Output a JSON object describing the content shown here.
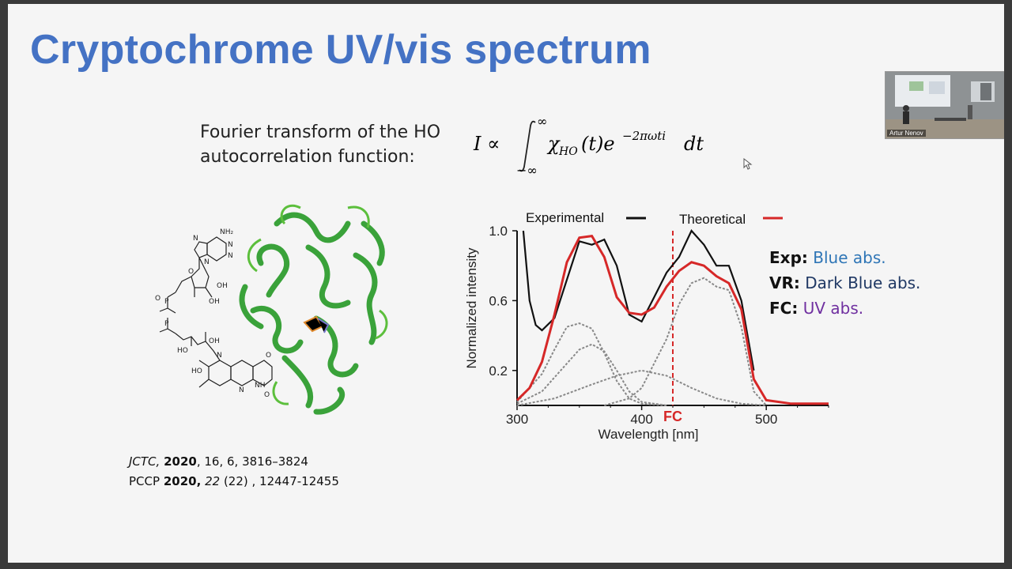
{
  "slide": {
    "title": "Cryptochrome UV/vis spectrum",
    "ft_line1": "Fourier transform of the HO",
    "ft_line2": "autocorrelation function:",
    "equation": {
      "lhs": "I ∝",
      "upper": "∞",
      "lower": "−∞",
      "chi": "χ",
      "chi_sub": "HO",
      "mid": "(t)e",
      "exp": "−2πωti",
      "tail": "dt"
    },
    "refs": {
      "r1_journal": "JCTC,",
      "r1_year": "2020",
      "r1_rest": ", 16, 6, 3816–3824",
      "r2_journal": "PCCP",
      "r2_year": "2020,",
      "r2_vol": "22",
      "r2_rest": "(22) , 12447-12455"
    },
    "legend_text": [
      {
        "key": "Exp:",
        "value": "Blue abs.",
        "color": "#2e75b6"
      },
      {
        "key": "VR:",
        "value": "Dark Blue abs.",
        "color": "#1f3864"
      },
      {
        "key": "FC:",
        "value": "UV abs.",
        "color": "#7030a0"
      }
    ],
    "molecule_labels": [
      "NH₂",
      "N",
      "N",
      "N",
      "N",
      "O",
      "OH",
      "OH",
      "P",
      "O",
      "P",
      "HO",
      "OH",
      "HO",
      "N",
      "N",
      "NH",
      "O",
      "O"
    ]
  },
  "camera": {
    "name": "Artur Nenov"
  },
  "colors": {
    "title": "#4472c4",
    "experimental": "#111111",
    "theoretical": "#d62828",
    "component": "#888888",
    "protein": "#3aa23a"
  },
  "chart_data": {
    "type": "line",
    "xlabel": "Wavelength [nm]",
    "ylabel": "Normalized intensity",
    "xlim": [
      300,
      550
    ],
    "ylim": [
      0,
      1.0
    ],
    "xticks": [
      300,
      400,
      500
    ],
    "yticks": [
      0.2,
      0.6,
      1.0
    ],
    "fc_marker": {
      "x": 425,
      "label": "FC"
    },
    "series": [
      {
        "name": "Experimental",
        "color": "#111111",
        "x": [
          305,
          310,
          315,
          320,
          330,
          340,
          350,
          360,
          370,
          380,
          390,
          400,
          410,
          420,
          430,
          440,
          450,
          460,
          470,
          480,
          490
        ],
        "y": [
          1.0,
          0.6,
          0.46,
          0.43,
          0.5,
          0.72,
          0.94,
          0.92,
          0.95,
          0.8,
          0.52,
          0.48,
          0.62,
          0.76,
          0.85,
          1.0,
          0.92,
          0.8,
          0.8,
          0.6,
          0.2
        ]
      },
      {
        "name": "Theoretical",
        "color": "#d62828",
        "x": [
          300,
          310,
          320,
          330,
          340,
          350,
          360,
          370,
          380,
          390,
          400,
          410,
          420,
          430,
          440,
          450,
          460,
          470,
          480,
          490,
          500,
          520,
          550
        ],
        "y": [
          0.03,
          0.1,
          0.25,
          0.52,
          0.82,
          0.96,
          0.97,
          0.85,
          0.62,
          0.53,
          0.52,
          0.56,
          0.68,
          0.77,
          0.82,
          0.8,
          0.74,
          0.7,
          0.55,
          0.15,
          0.03,
          0.01,
          0.01
        ]
      },
      {
        "color": "#888888",
        "x": [
          300,
          320,
          330,
          340,
          350,
          360,
          370,
          380,
          390,
          400,
          420
        ],
        "y": [
          0.02,
          0.18,
          0.32,
          0.45,
          0.47,
          0.44,
          0.3,
          0.14,
          0.04,
          0.01,
          0.0
        ]
      },
      {
        "color": "#888888",
        "x": [
          300,
          320,
          340,
          350,
          360,
          370,
          380,
          390,
          400,
          420
        ],
        "y": [
          0.01,
          0.08,
          0.24,
          0.32,
          0.35,
          0.31,
          0.2,
          0.08,
          0.02,
          0.0
        ]
      },
      {
        "color": "#888888",
        "x": [
          300,
          330,
          360,
          380,
          400,
          420,
          440,
          460,
          480,
          500
        ],
        "y": [
          0.0,
          0.04,
          0.12,
          0.17,
          0.2,
          0.17,
          0.1,
          0.04,
          0.01,
          0.0
        ]
      },
      {
        "color": "#888888",
        "x": [
          370,
          390,
          400,
          420,
          430,
          440,
          450,
          460,
          470,
          480,
          490,
          500
        ],
        "y": [
          0.0,
          0.04,
          0.1,
          0.38,
          0.58,
          0.7,
          0.73,
          0.68,
          0.66,
          0.45,
          0.08,
          0.0
        ]
      }
    ]
  }
}
